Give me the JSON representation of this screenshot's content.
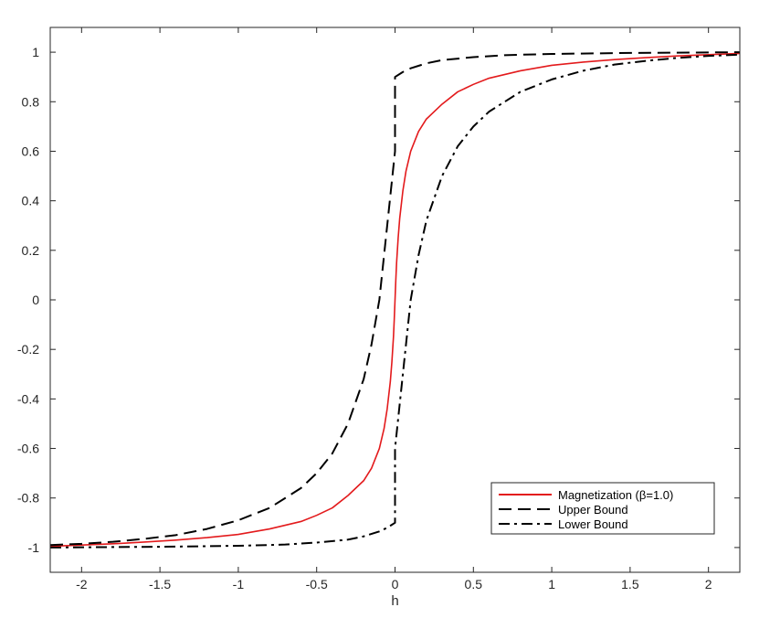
{
  "chart_data": {
    "type": "line",
    "title": "",
    "xlabel": "h",
    "ylabel": "",
    "xlim": [
      -2.2,
      2.2
    ],
    "ylim": [
      -1.1,
      1.1
    ],
    "grid": false,
    "legend_position": "bottom-right",
    "x_ticks": [
      -2,
      -1.5,
      -1,
      -0.5,
      0,
      0.5,
      1,
      1.5,
      2
    ],
    "x_tick_labels": [
      "-2",
      "-1.5",
      "-1",
      "-0.5",
      "0",
      "0.5",
      "1",
      "1.5",
      "2"
    ],
    "y_ticks": [
      1,
      0.8,
      0.6,
      0.4,
      0.2,
      0,
      -0.2,
      -0.4,
      -0.6,
      -0.8,
      -1
    ],
    "y_tick_labels": [
      "1",
      "0.8",
      "0.6",
      "0.4",
      "0.2",
      "0",
      "-0.2",
      "-0.4",
      "-0.6",
      "-0.8",
      "-1"
    ],
    "series": [
      {
        "name": "Magnetization (β=1.0)",
        "color": "#e31a1c",
        "style": "solid",
        "x": [
          -2.2,
          -2.0,
          -1.8,
          -1.6,
          -1.4,
          -1.2,
          -1.0,
          -0.8,
          -0.6,
          -0.5,
          -0.4,
          -0.3,
          -0.2,
          -0.15,
          -0.1,
          -0.07,
          -0.05,
          -0.03,
          -0.02,
          -0.01,
          -0.005,
          0,
          0.005,
          0.01,
          0.02,
          0.03,
          0.05,
          0.07,
          0.1,
          0.15,
          0.2,
          0.3,
          0.4,
          0.5,
          0.6,
          0.8,
          1.0,
          1.2,
          1.4,
          1.6,
          1.8,
          2.0,
          2.2
        ],
        "y": [
          -0.995,
          -0.99,
          -0.985,
          -0.978,
          -0.97,
          -0.96,
          -0.947,
          -0.925,
          -0.895,
          -0.87,
          -0.84,
          -0.79,
          -0.73,
          -0.68,
          -0.6,
          -0.52,
          -0.44,
          -0.33,
          -0.25,
          -0.15,
          -0.08,
          0,
          0.08,
          0.15,
          0.25,
          0.33,
          0.44,
          0.52,
          0.6,
          0.68,
          0.73,
          0.79,
          0.84,
          0.87,
          0.895,
          0.925,
          0.947,
          0.96,
          0.97,
          0.978,
          0.985,
          0.99,
          0.995
        ]
      },
      {
        "name": "Upper Bound",
        "color": "#000000",
        "style": "dashed",
        "x": [
          -2.2,
          -2.0,
          -1.8,
          -1.6,
          -1.4,
          -1.2,
          -1.0,
          -0.8,
          -0.6,
          -0.5,
          -0.4,
          -0.3,
          -0.2,
          -0.15,
          -0.1,
          -0.05,
          0,
          0,
          0.05,
          0.1,
          0.2,
          0.3,
          0.5,
          0.7,
          1.0,
          1.5,
          2.0,
          2.2
        ],
        "y": [
          -0.99,
          -0.985,
          -0.977,
          -0.965,
          -0.95,
          -0.925,
          -0.89,
          -0.84,
          -0.76,
          -0.7,
          -0.62,
          -0.5,
          -0.32,
          -0.18,
          0.0,
          0.3,
          0.6,
          0.9,
          0.92,
          0.935,
          0.955,
          0.968,
          0.98,
          0.988,
          0.993,
          0.997,
          0.999,
          1.0
        ]
      },
      {
        "name": "Lower Bound",
        "color": "#000000",
        "style": "dashdot",
        "x": [
          -2.2,
          -2.0,
          -1.5,
          -1.0,
          -0.7,
          -0.5,
          -0.3,
          -0.2,
          -0.1,
          -0.05,
          0,
          0,
          0.05,
          0.1,
          0.15,
          0.2,
          0.3,
          0.4,
          0.5,
          0.6,
          0.8,
          1.0,
          1.2,
          1.4,
          1.6,
          1.8,
          2.0,
          2.2
        ],
        "y": [
          -1.0,
          -0.999,
          -0.997,
          -0.993,
          -0.988,
          -0.98,
          -0.968,
          -0.955,
          -0.935,
          -0.92,
          -0.9,
          -0.6,
          -0.3,
          0.0,
          0.18,
          0.32,
          0.5,
          0.62,
          0.7,
          0.76,
          0.84,
          0.89,
          0.925,
          0.95,
          0.965,
          0.977,
          0.985,
          0.99
        ]
      }
    ]
  }
}
